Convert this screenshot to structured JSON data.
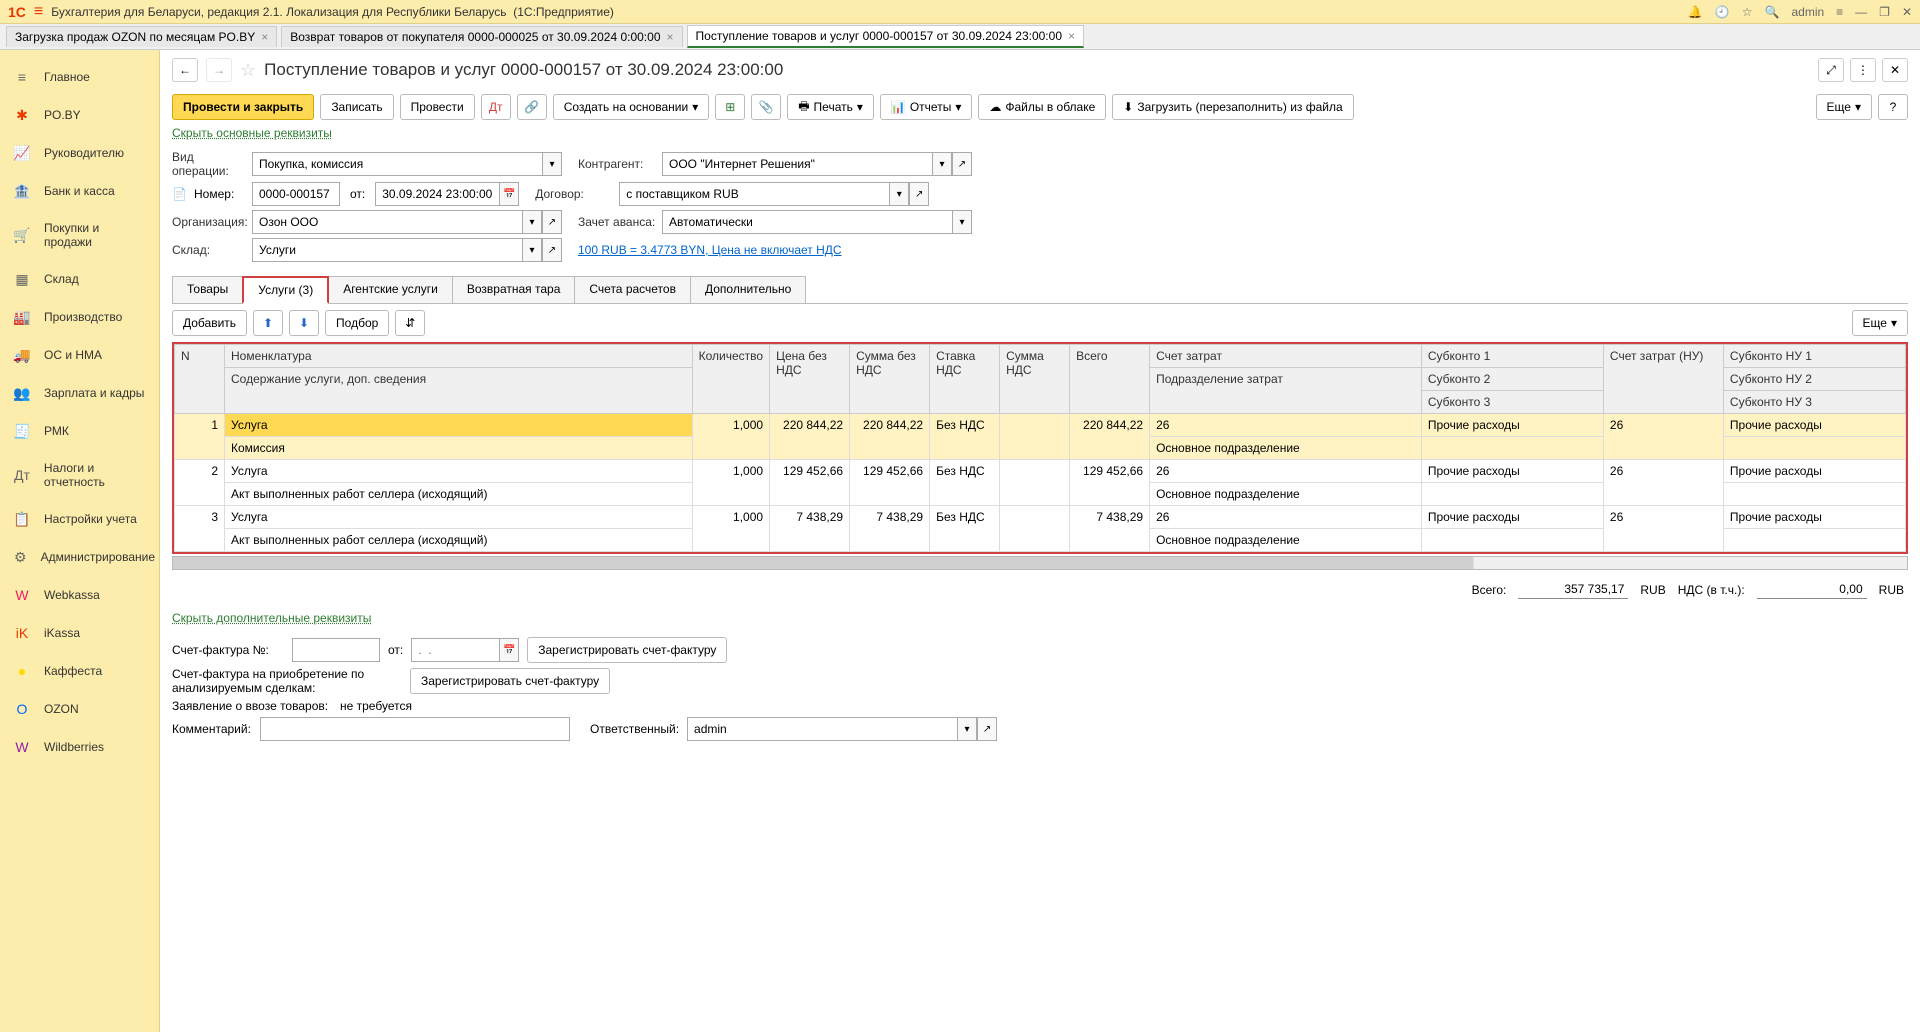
{
  "titlebar": {
    "app_title": "Бухгалтерия для Беларуси, редакция 2.1. Локализация для Республики Беларусь",
    "platform": "(1С:Предприятие)",
    "user": "admin"
  },
  "tabs": [
    {
      "label": "Загрузка продаж OZON по месяцам PO.BY",
      "active": false
    },
    {
      "label": "Возврат товаров от покупателя 0000-000025 от 30.09.2024 0:00:00",
      "active": false
    },
    {
      "label": "Поступление товаров и услуг 0000-000157 от 30.09.2024 23:00:00",
      "active": true
    }
  ],
  "sidebar": [
    {
      "icon": "≡",
      "label": "Главное"
    },
    {
      "icon": "✱",
      "label": "PO.BY",
      "color": "#e63900"
    },
    {
      "icon": "📈",
      "label": "Руководителю"
    },
    {
      "icon": "🏦",
      "label": "Банк и касса"
    },
    {
      "icon": "🛒",
      "label": "Покупки и продажи"
    },
    {
      "icon": "▦",
      "label": "Склад"
    },
    {
      "icon": "🏭",
      "label": "Производство"
    },
    {
      "icon": "🚚",
      "label": "ОС и НМА"
    },
    {
      "icon": "👥",
      "label": "Зарплата и кадры"
    },
    {
      "icon": "🧾",
      "label": "РМК"
    },
    {
      "icon": "Дт",
      "label": "Налоги и отчетность"
    },
    {
      "icon": "📋",
      "label": "Настройки учета"
    },
    {
      "icon": "⚙",
      "label": "Администрирование"
    },
    {
      "icon": "W",
      "label": "Webkassa",
      "color": "#e91e63"
    },
    {
      "icon": "iK",
      "label": "iKassa",
      "color": "#e63900"
    },
    {
      "icon": "●",
      "label": "Каффеста",
      "color": "#ffd700"
    },
    {
      "icon": "О",
      "label": "OZON",
      "color": "#0066ff"
    },
    {
      "icon": "W",
      "label": "Wildberries",
      "color": "#8e24aa"
    }
  ],
  "doc": {
    "title": "Поступление товаров и услуг 0000-000157 от 30.09.2024 23:00:00",
    "hide_link": "Скрыть основные реквизиты",
    "hide_link2": "Скрыть дополнительные реквизиты"
  },
  "toolbar": {
    "post_close": "Провести и закрыть",
    "save": "Записать",
    "post": "Провести",
    "create_based": "Создать на основании",
    "print": "Печать",
    "reports": "Отчеты",
    "cloud_files": "Файлы в облаке",
    "reload": "Загрузить (перезаполнить) из файла",
    "more": "Еще"
  },
  "form": {
    "op_type_label": "Вид операции:",
    "op_type": "Покупка, комиссия",
    "number_label": "Номер:",
    "number": "0000-000157",
    "from_label": "от:",
    "date": "30.09.2024 23:00:00",
    "org_label": "Организация:",
    "org": "Озон ООО",
    "store_label": "Склад:",
    "store": "Услуги",
    "partner_label": "Контрагент:",
    "partner": "ООО \"Интернет Решения\"",
    "contract_label": "Договор:",
    "contract": "с поставщиком RUB",
    "advance_label": "Зачет аванса:",
    "advance": "Автоматически",
    "rate_info": "100 RUB = 3.4773 BYN, Цена не включает НДС"
  },
  "data_tabs": [
    "Товары",
    "Услуги (3)",
    "Агентские услуги",
    "Возвратная тара",
    "Счета расчетов",
    "Дополнительно"
  ],
  "active_data_tab": 1,
  "table_toolbar": {
    "add": "Добавить",
    "select": "Подбор",
    "more": "Еще"
  },
  "columns": {
    "n": "N",
    "nom": "Номенклатура",
    "nom2": "Содержание услуги, доп. сведения",
    "qty": "Количество",
    "price": "Цена без НДС",
    "sum": "Сумма без НДС",
    "vat_rate": "Ставка НДС",
    "vat_sum": "Сумма НДС",
    "total": "Всего",
    "cost_acc": "Счет затрат",
    "cost_acc2": "Подразделение затрат",
    "sub1": "Субконто 1",
    "sub2": "Субконто 2",
    "sub3": "Субконто 3",
    "cost_acc_nu": "Счет затрат (НУ)",
    "subnu1": "Субконто НУ 1",
    "subnu2": "Субконто НУ 2",
    "subnu3": "Субконто НУ 3"
  },
  "rows": [
    {
      "n": "1",
      "nom": "Услуга",
      "desc": "Комиссия",
      "qty": "1,000",
      "price": "220 844,22",
      "sum": "220 844,22",
      "vat": "Без НДС",
      "vatsum": "",
      "total": "220 844,22",
      "acc": "26",
      "dept": "Основное подразделение",
      "sk1": "Прочие расходы",
      "accnu": "26",
      "sknu1": "Прочие расходы",
      "selected": true
    },
    {
      "n": "2",
      "nom": "Услуга",
      "desc": "Акт выполненных работ селлера (исходящий)",
      "qty": "1,000",
      "price": "129 452,66",
      "sum": "129 452,66",
      "vat": "Без НДС",
      "vatsum": "",
      "total": "129 452,66",
      "acc": "26",
      "dept": "Основное подразделение",
      "sk1": "Прочие расходы",
      "accnu": "26",
      "sknu1": "Прочие расходы"
    },
    {
      "n": "3",
      "nom": "Услуга",
      "desc": "Акт выполненных работ селлера (исходящий)",
      "qty": "1,000",
      "price": "7 438,29",
      "sum": "7 438,29",
      "vat": "Без НДС",
      "vatsum": "",
      "total": "7 438,29",
      "acc": "26",
      "dept": "Основное подразделение",
      "sk1": "Прочие расходы",
      "accnu": "26",
      "sknu1": "Прочие расходы"
    }
  ],
  "totals": {
    "label": "Всего:",
    "amount": "357 735,17",
    "cur": "RUB",
    "vat_label": "НДС (в т.ч.):",
    "vat": "0,00",
    "vat_cur": "RUB"
  },
  "footer": {
    "invoice_label": "Счет-фактура №:",
    "from": "от:",
    "date_ph": ".  .",
    "register": "Зарегистрировать счет-фактуру",
    "invoice_acq": "Счет-фактура на приобретение по анализируемым сделкам:",
    "import_decl": "Заявление о ввозе товаров:",
    "not_required": "не требуется",
    "comment_label": "Комментарий:",
    "resp_label": "Ответственный:",
    "resp": "admin"
  }
}
